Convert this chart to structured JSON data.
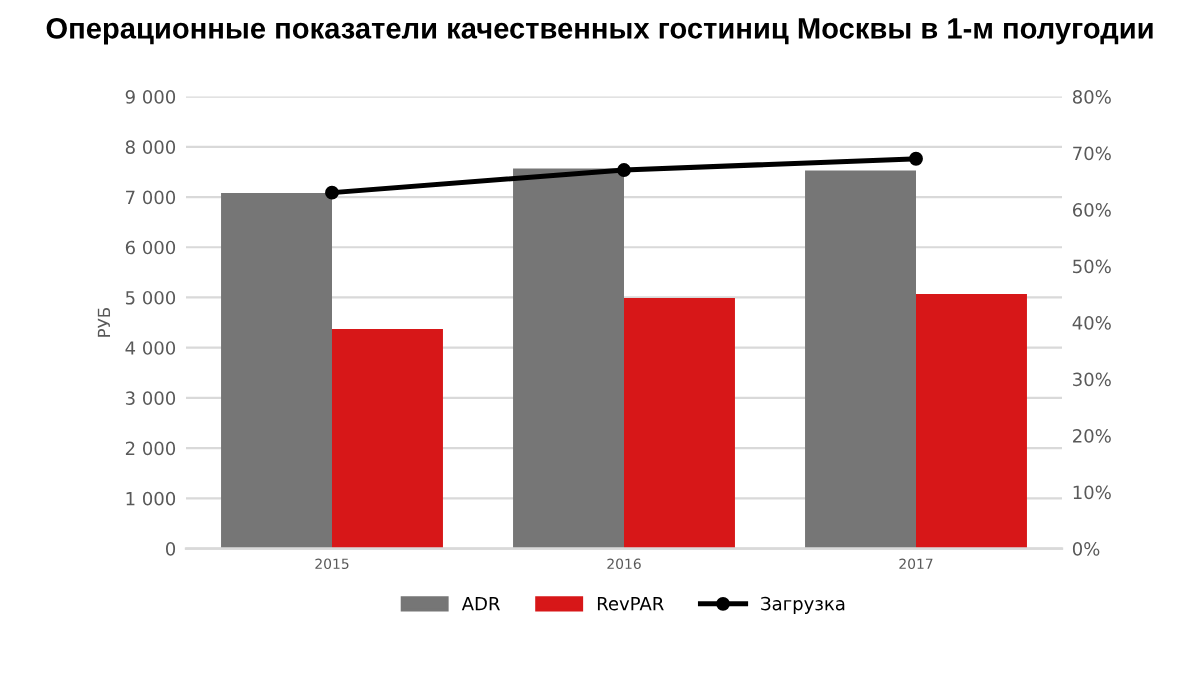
{
  "chart_data": {
    "type": "bar",
    "title": "Операционные показатели качественных гостиниц Москвы в 1-м полугодии",
    "ylabel": "РУБ",
    "categories": [
      "2015",
      "2016",
      "2017"
    ],
    "series": [
      {
        "name": "ADR",
        "color": "#767676",
        "values": [
          7080,
          7570,
          7530
        ]
      },
      {
        "name": "RevPAR",
        "color": "#d71718",
        "values": [
          4370,
          4990,
          5070
        ]
      },
      {
        "name": "Загрузка",
        "color": "#000000",
        "type": "line",
        "axis": "y2",
        "marker": "circle",
        "values": [
          63,
          67,
          69
        ]
      }
    ],
    "ylim": [
      0,
      9000
    ],
    "yticks": [
      0,
      {
        "value": 1000,
        "label": "1 000"
      },
      {
        "value": 2000,
        "label": "2 000"
      },
      {
        "value": 3000,
        "label": "3 000"
      },
      {
        "value": 4000,
        "label": "4 000"
      },
      {
        "value": 5000,
        "label": "5 000"
      },
      {
        "value": 6000,
        "label": "6 000"
      },
      {
        "value": 7000,
        "label": "7 000"
      },
      {
        "value": 8000,
        "label": "8 000"
      },
      {
        "value": 9000,
        "label": "9 000"
      }
    ],
    "y2lim": [
      0,
      80
    ],
    "y2ticks": [
      {
        "value": 0,
        "label": "0%"
      },
      {
        "value": 10,
        "label": "10%"
      },
      {
        "value": 20,
        "label": "20%"
      },
      {
        "value": 30,
        "label": "30%"
      },
      {
        "value": 40,
        "label": "40%"
      },
      {
        "value": 50,
        "label": "50%"
      },
      {
        "value": 60,
        "label": "60%"
      },
      {
        "value": 70,
        "label": "70%"
      },
      {
        "value": 80,
        "label": "80%"
      }
    ],
    "grid": "y",
    "legend": "bottom"
  }
}
